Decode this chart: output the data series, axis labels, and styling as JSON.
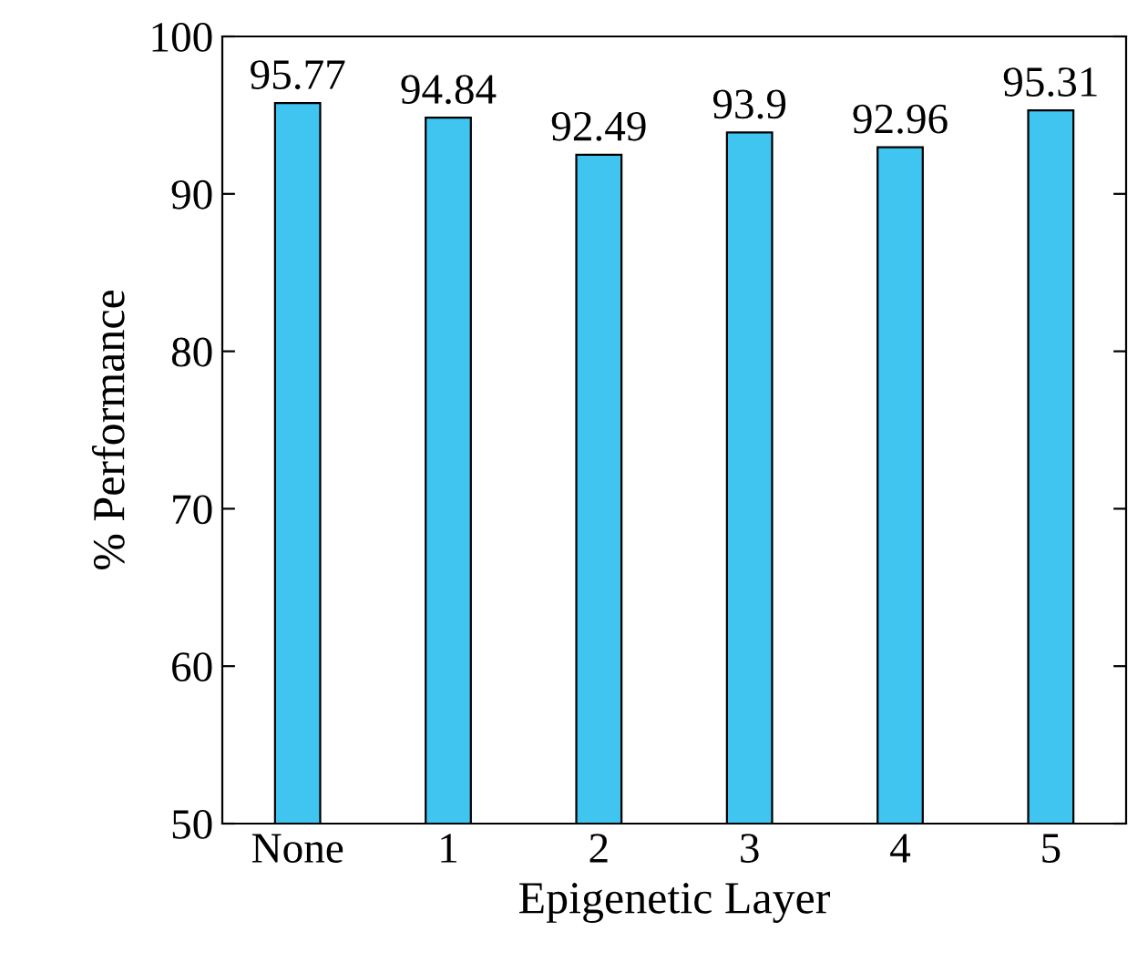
{
  "chart_data": {
    "type": "bar",
    "xlabel": "Epigenetic Layer",
    "ylabel": "% Performance",
    "categories": [
      "None",
      "1",
      "2",
      "3",
      "4",
      "5"
    ],
    "values": [
      95.77,
      94.84,
      92.49,
      93.9,
      92.96,
      95.31
    ],
    "color": "#40c4f0",
    "ylim": [
      50,
      100
    ],
    "yticks": [
      50,
      60,
      70,
      80,
      90,
      100
    ],
    "data_labels": true,
    "grid": false,
    "legend": false
  }
}
